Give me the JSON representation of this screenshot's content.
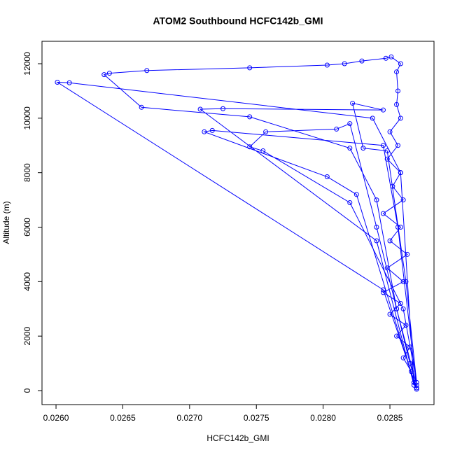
{
  "chart_data": {
    "type": "line",
    "title": "ATOM2 Southbound HCFC142b_GMI",
    "x_label": "HCFC142b_GMI",
    "y_label": "Altitude (m)",
    "color": "#0000ff",
    "x": [
      0.0287,
      0.02868,
      0.02866,
      0.0286,
      0.02865,
      0.02855,
      0.02862,
      0.0285,
      0.02858,
      0.02845,
      0.0286,
      0.02848,
      0.02863,
      0.0285,
      0.02858,
      0.02845,
      0.0286,
      0.02852,
      0.02858,
      0.02848,
      0.02856,
      0.0285,
      0.02858,
      0.02855,
      0.02856,
      0.02855,
      0.02858,
      0.02851,
      0.02847,
      0.02829,
      0.02816,
      0.02803,
      0.02745,
      0.02668,
      0.0264,
      0.02636,
      0.02664,
      0.02745,
      0.0282,
      0.0284,
      0.02855,
      0.0287,
      0.02865,
      0.02855,
      0.0284,
      0.0282,
      0.0281,
      0.02757,
      0.02745,
      0.02755,
      0.0282,
      0.0286,
      0.0287,
      0.02862,
      0.02848,
      0.0283,
      0.02822,
      0.02845,
      0.02725,
      0.02708,
      0.0284,
      0.02868,
      0.02858,
      0.02837,
      0.0261,
      0.02601,
      0.02845,
      0.0287,
      0.02856,
      0.02845,
      0.02717,
      0.02711,
      0.02803,
      0.02825,
      0.02868
    ],
    "values": [
      50,
      300,
      700,
      1200,
      1600,
      2000,
      2400,
      2800,
      3200,
      3600,
      4000,
      4500,
      5000,
      5500,
      6000,
      6500,
      7000,
      7500,
      8000,
      8500,
      9000,
      9500,
      10000,
      10500,
      11000,
      11700,
      12000,
      12250,
      12200,
      12100,
      12000,
      11950,
      11850,
      11750,
      11650,
      11600,
      10400,
      10050,
      8900,
      7000,
      3000,
      200,
      1000,
      3000,
      6000,
      9800,
      9600,
      9500,
      8950,
      8800,
      6900,
      3000,
      300,
      4000,
      8800,
      8900,
      10550,
      10300,
      10350,
      10330,
      5500,
      200,
      8000,
      10000,
      11300,
      11320,
      3700,
      100,
      6000,
      9000,
      9550,
      9500,
      7850,
      7200,
      300
    ],
    "xlim": [
      0.025895,
      0.02883
    ],
    "ylim": [
      -514,
      12823
    ],
    "xticks": [
      {
        "value": 0.026,
        "label": "0.0260"
      },
      {
        "value": 0.0265,
        "label": "0.0265"
      },
      {
        "value": 0.027,
        "label": "0.0270"
      },
      {
        "value": 0.0275,
        "label": "0.0275"
      },
      {
        "value": 0.028,
        "label": "0.0280"
      },
      {
        "value": 0.0285,
        "label": "0.0285"
      }
    ],
    "yticks": [
      0,
      2000,
      4000,
      6000,
      8000,
      10000,
      12000
    ]
  }
}
